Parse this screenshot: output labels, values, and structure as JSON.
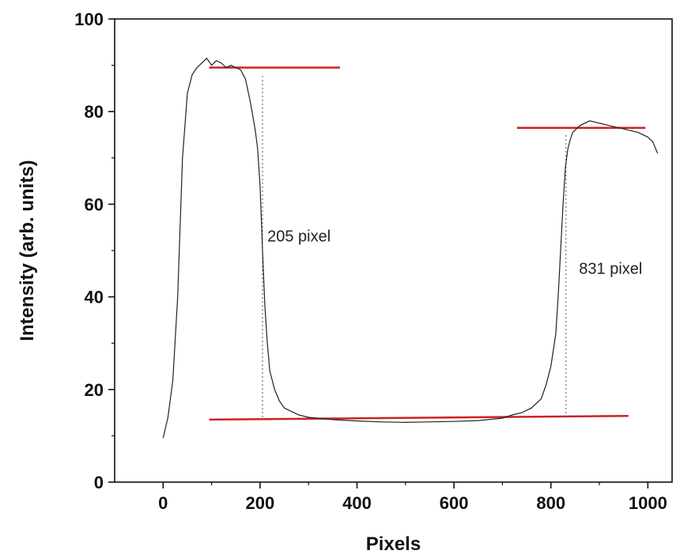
{
  "chart_data": {
    "type": "line",
    "title": "",
    "xlabel": "Pixels",
    "ylabel": "Intensity (arb. units)",
    "xlim": [
      -100,
      1050
    ],
    "ylim": [
      0,
      100
    ],
    "x_ticks": [
      0,
      200,
      400,
      600,
      800,
      1000
    ],
    "y_ticks": [
      0,
      20,
      40,
      60,
      80,
      100
    ],
    "grid": false,
    "series": [
      {
        "color": "#222222",
        "x": [
          0,
          10,
          20,
          30,
          40,
          50,
          60,
          70,
          80,
          90,
          100,
          110,
          120,
          130,
          140,
          150,
          160,
          170,
          180,
          190,
          195,
          200,
          205,
          210,
          215,
          220,
          230,
          240,
          250,
          260,
          280,
          300,
          320,
          350,
          400,
          450,
          500,
          550,
          600,
          650,
          700,
          720,
          740,
          760,
          780,
          790,
          800,
          810,
          815,
          820,
          825,
          830,
          835,
          840,
          845,
          850,
          860,
          880,
          900,
          920,
          940,
          960,
          980,
          1000,
          1010,
          1020
        ],
        "y": [
          9.5,
          14,
          22,
          40,
          70,
          84,
          88,
          89.5,
          90.5,
          91.5,
          90,
          91,
          90.5,
          89.5,
          90,
          89.5,
          89,
          87,
          82,
          76,
          72,
          64,
          50,
          38,
          30,
          24,
          20,
          17.5,
          16,
          15.5,
          14.5,
          14,
          13.8,
          13.5,
          13.2,
          13,
          12.9,
          13,
          13.1,
          13.3,
          13.8,
          14.5,
          15,
          16,
          18,
          21,
          25,
          32,
          40,
          50,
          60,
          68,
          72,
          74,
          75.5,
          76,
          77,
          78,
          77.5,
          77,
          76.5,
          76,
          75.5,
          74.5,
          73.5,
          71
        ]
      }
    ],
    "reference_lines": [
      {
        "color": "#cc2222",
        "x": [
          95,
          365
        ],
        "y": [
          89.5,
          89.5
        ]
      },
      {
        "color": "#cc2222",
        "x": [
          730,
          995
        ],
        "y": [
          76.5,
          76.5
        ]
      },
      {
        "color": "#cc2222",
        "x": [
          95,
          960
        ],
        "y": [
          13.5,
          14.3
        ]
      }
    ],
    "dotted_lines": [
      {
        "x": 205,
        "y": [
          14,
          88
        ]
      },
      {
        "x": 831,
        "y": [
          14,
          75
        ]
      }
    ],
    "annotations": [
      {
        "text": "205 pixel",
        "x": 215,
        "y": 52
      },
      {
        "text": "831 pixel",
        "x": 858,
        "y": 45
      }
    ]
  }
}
